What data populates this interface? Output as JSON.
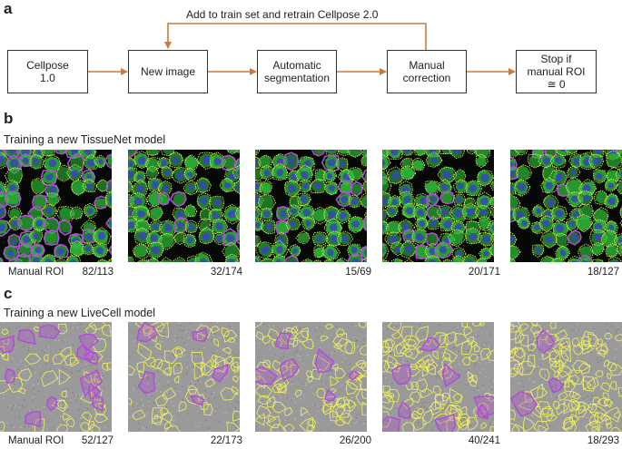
{
  "panel_a": {
    "label": "a",
    "loop_label": "Add to train set and retrain Cellpose 2.0",
    "boxes": [
      "Cellpose\n1.0",
      "New image",
      "Automatic\nsegmentation",
      "Manual\ncorrection",
      "Stop if\nmanual ROI\n≅ 0"
    ]
  },
  "panel_b": {
    "label": "b",
    "title": "Training a new TissueNet model",
    "manual_roi_label": "Manual ROI",
    "counts": [
      "82/113",
      "32/174",
      "15/69",
      "20/171",
      "18/127"
    ]
  },
  "panel_c": {
    "label": "c",
    "title": "Training a new LiveCell model",
    "manual_roi_label": "Manual ROI",
    "counts": [
      "52/127",
      "22/173",
      "26/200",
      "40/241",
      "18/293"
    ]
  },
  "colors": {
    "arrow": "#c97a3c",
    "tissue_background": "#050805",
    "tissue_membrane": "#2fbf3a",
    "tissue_nucleus": "#3a44b8",
    "auto_outline": "#f2f25a",
    "manual_outline": "#b04fd6",
    "livecell_background": "#9a9a9a"
  }
}
